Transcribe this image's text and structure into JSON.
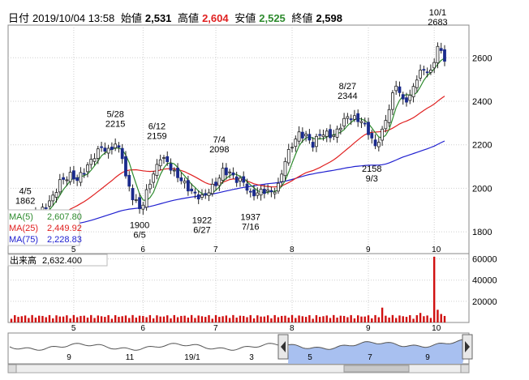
{
  "header": {
    "date_label": "日付",
    "datetime": "2019/10/04 13:58",
    "open_label": "始値",
    "open": "2,531",
    "high_label": "高値",
    "high": "2,604",
    "low_label": "安値",
    "low": "2,525",
    "close_label": "終値",
    "close": "2,598"
  },
  "colors": {
    "up": "#ffffff",
    "down": "#1a2a8c",
    "ma5": "#2e8b2e",
    "ma25": "#e02020",
    "ma75": "#2020d0",
    "volume": "#d01010",
    "navfill": "#a8c0f0"
  },
  "chart_data": [
    {
      "type": "candlestick",
      "title": "",
      "y_ticks": [
        1800,
        2000,
        2200,
        2400,
        2600
      ],
      "ylim": [
        1700,
        2750
      ],
      "x_month_labels": [
        "5",
        "6",
        "7",
        "8",
        "9",
        "10"
      ],
      "annotations": [
        {
          "date": "4/5",
          "value": "1862",
          "pos": "above"
        },
        {
          "date": "5/28",
          "value": "2215",
          "pos": "above"
        },
        {
          "date": "6/5",
          "value": "1900",
          "pos": "below"
        },
        {
          "date": "6/12",
          "value": "2159",
          "pos": "above"
        },
        {
          "date": "6/27",
          "value": "1922",
          "pos": "below"
        },
        {
          "date": "7/4",
          "value": "2098",
          "pos": "above"
        },
        {
          "date": "7/16",
          "value": "1937",
          "pos": "below"
        },
        {
          "date": "8/27",
          "value": "2344",
          "pos": "above"
        },
        {
          "date": "9/3",
          "value": "2158",
          "pos": "below"
        },
        {
          "date": "10/1",
          "value": "2683",
          "pos": "above"
        }
      ],
      "legend": [
        {
          "name": "MA(5)",
          "value": "2,607.80"
        },
        {
          "name": "MA(25)",
          "value": "2,449.92"
        },
        {
          "name": "MA(75)",
          "value": "2,228.83"
        }
      ]
    },
    {
      "type": "bar",
      "title": "出来高",
      "current_value": "2,632.400",
      "y_ticks": [
        "20000",
        "40000",
        "60000"
      ],
      "ylim": [
        0,
        65000
      ],
      "x_month_labels": [
        "5",
        "6",
        "7",
        "8",
        "9",
        "10"
      ]
    },
    {
      "type": "area",
      "title": "",
      "x_labels": [
        "9",
        "11",
        "19/1",
        "3",
        "5",
        "7",
        "9"
      ]
    }
  ]
}
